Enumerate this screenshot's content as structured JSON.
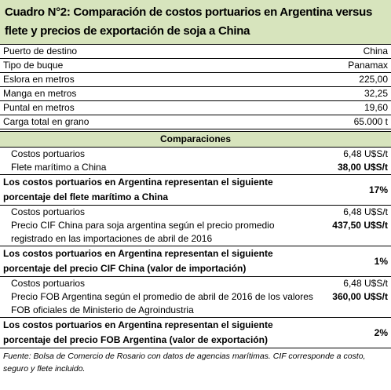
{
  "title": "Cuadro N°2: Comparación de costos portuarios en Argentina versus flete y precios de exportación de soja a China",
  "specs": [
    {
      "label": "Puerto de destino",
      "value": "China"
    },
    {
      "label": "Tipo de buque",
      "value": "Panamax"
    },
    {
      "label": "Eslora en metros",
      "value": "225,00"
    },
    {
      "label": "Manga en metros",
      "value": "32,25"
    },
    {
      "label": "Puntal en metros",
      "value": "19,60"
    },
    {
      "label": "Carga total en grano",
      "value": "65.000 t"
    }
  ],
  "comparisons_header": "Comparaciones",
  "sections": [
    {
      "rows": [
        {
          "label": "Costos portuarios",
          "value": "6,48 U$S/t"
        },
        {
          "label": "Flete marítimo a China",
          "value": "38,00 U$S/t"
        }
      ],
      "conclusion": {
        "label": "Los costos portuarios en Argentina representan el siguiente porcentaje del flete marítimo a China",
        "value": "17%"
      }
    },
    {
      "rows": [
        {
          "label": "Costos portuarios",
          "value": "6,48 U$S/t"
        },
        {
          "label": "Precio CIF China para soja argentina según el precio promedio registrado en las importaciones de abril de 2016",
          "value": "437,50 U$S/t"
        }
      ],
      "conclusion": {
        "label": "Los costos portuarios en Argentina representan el siguiente porcentaje del precio CIF China (valor de importación)",
        "value": "1%"
      }
    },
    {
      "rows": [
        {
          "label": "Costos portuarios",
          "value": "6,48 U$S/t"
        },
        {
          "label": "Precio FOB Argentina según el promedio de abril de 2016 de los valores FOB oficiales de Ministerio de Agroindustria",
          "value": "360,00 U$S/t"
        }
      ],
      "conclusion": {
        "label": "Los costos portuarios en Argentina representan el siguiente porcentaje del precio FOB Argentina (valor de exportación)",
        "value": "2%"
      }
    }
  ],
  "footer": "Fuente: Bolsa de Comercio de Rosario con datos de agencias marítimas. CIF corresponde a costo, seguro y flete incluido."
}
